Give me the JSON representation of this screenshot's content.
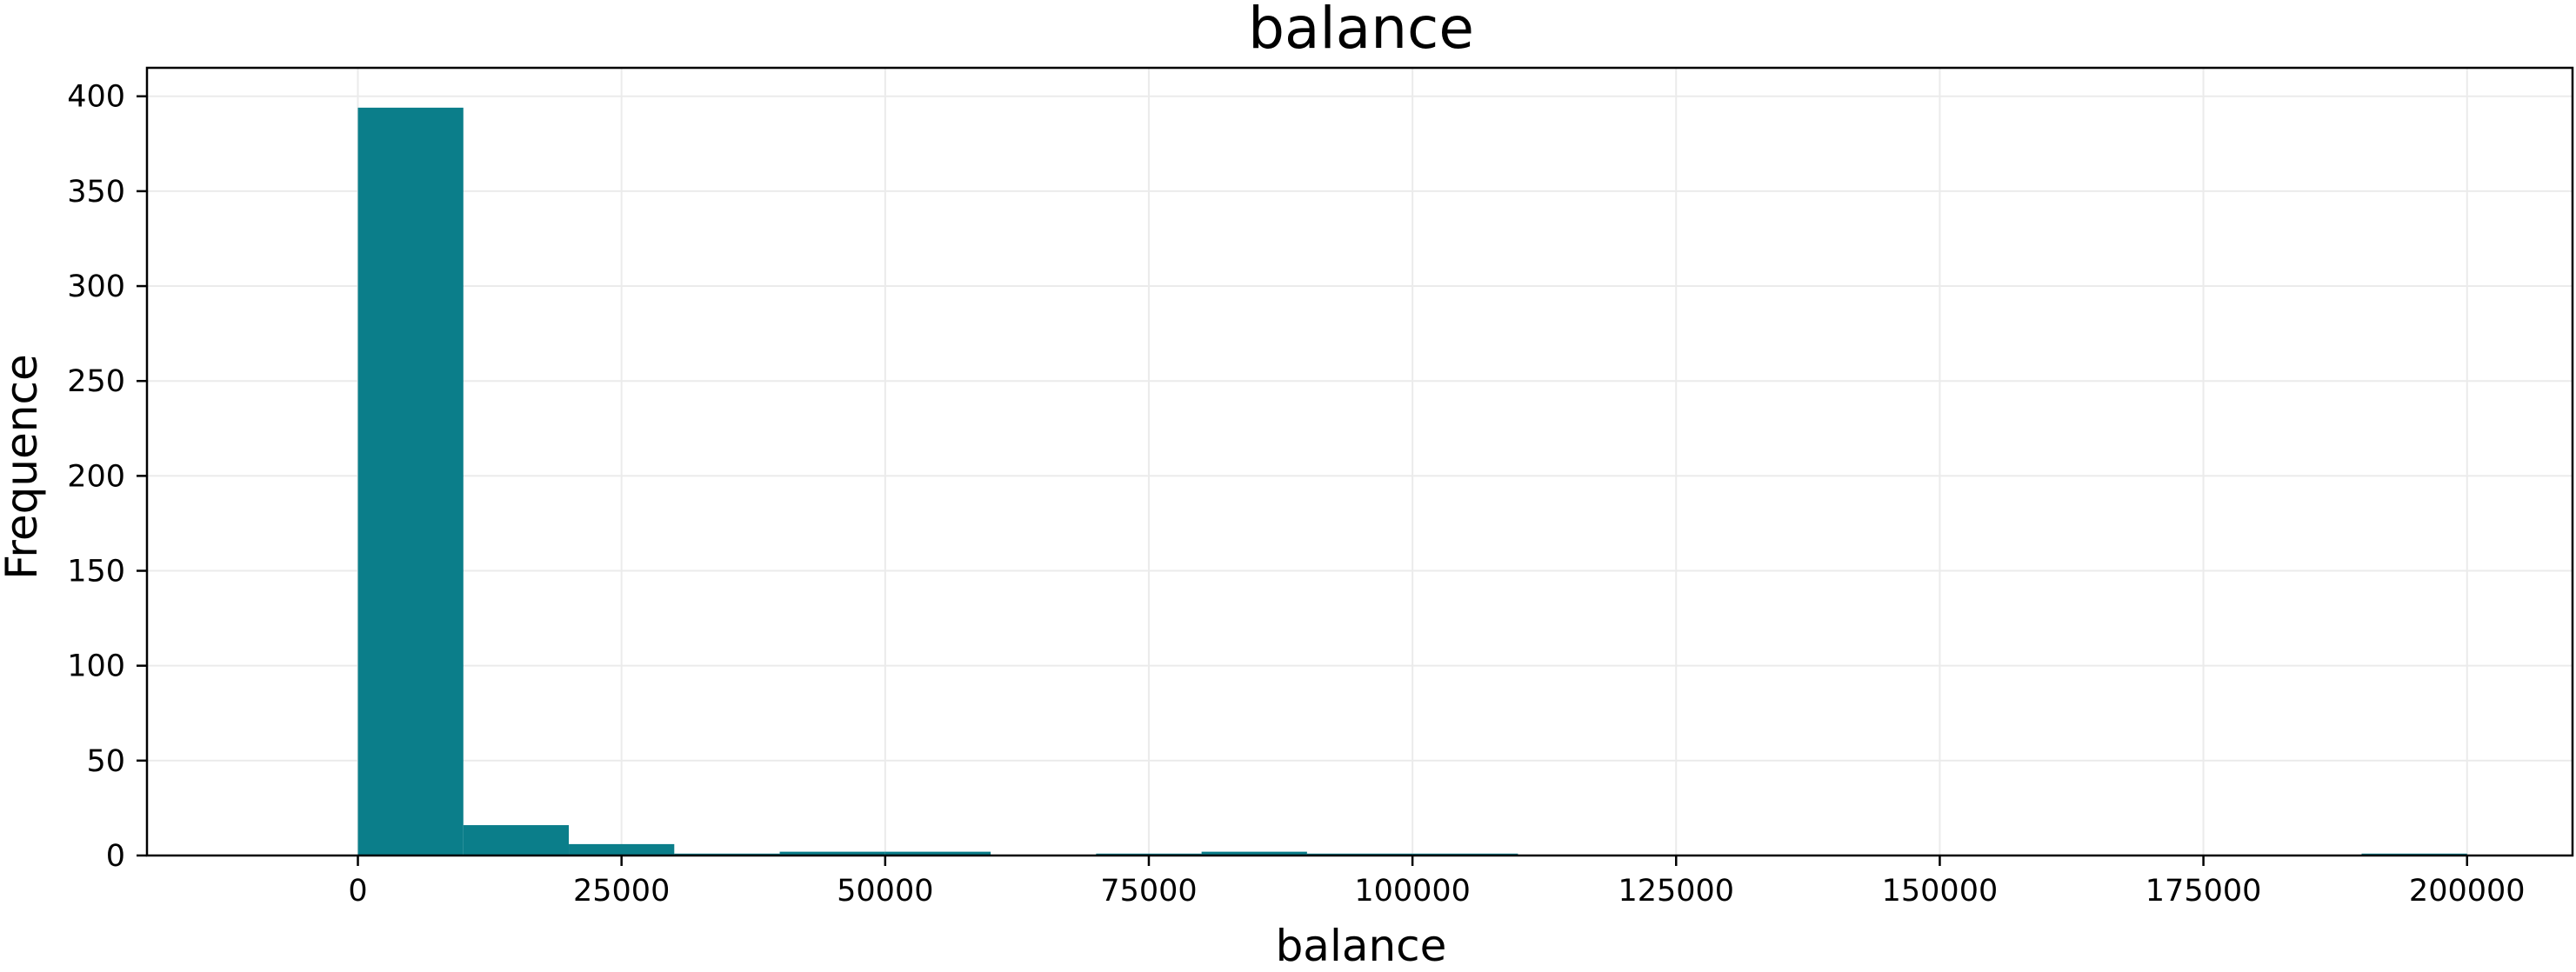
{
  "chart_data": {
    "type": "bar",
    "title": "balance",
    "xlabel": "balance",
    "ylabel": "Frequence",
    "xlim": [
      -20000,
      210000
    ],
    "ylim": [
      0,
      415
    ],
    "x_ticks": [
      0,
      25000,
      50000,
      75000,
      100000,
      125000,
      150000,
      175000,
      200000
    ],
    "y_ticks": [
      0,
      50,
      100,
      150,
      200,
      250,
      300,
      350,
      400
    ],
    "grid": true,
    "bar_color": "#0b7e8a",
    "bins": [
      {
        "start": 0,
        "end": 10000,
        "count": 394
      },
      {
        "start": 10000,
        "end": 20000,
        "count": 16
      },
      {
        "start": 20000,
        "end": 30000,
        "count": 6
      },
      {
        "start": 30000,
        "end": 40000,
        "count": 1
      },
      {
        "start": 40000,
        "end": 50000,
        "count": 2
      },
      {
        "start": 50000,
        "end": 60000,
        "count": 2
      },
      {
        "start": 60000,
        "end": 70000,
        "count": 0
      },
      {
        "start": 70000,
        "end": 80000,
        "count": 1
      },
      {
        "start": 80000,
        "end": 90000,
        "count": 2
      },
      {
        "start": 90000,
        "end": 100000,
        "count": 1
      },
      {
        "start": 100000,
        "end": 110000,
        "count": 1
      },
      {
        "start": 110000,
        "end": 120000,
        "count": 0
      },
      {
        "start": 120000,
        "end": 130000,
        "count": 0
      },
      {
        "start": 130000,
        "end": 140000,
        "count": 0
      },
      {
        "start": 140000,
        "end": 150000,
        "count": 0
      },
      {
        "start": 150000,
        "end": 160000,
        "count": 0
      },
      {
        "start": 160000,
        "end": 170000,
        "count": 0
      },
      {
        "start": 170000,
        "end": 180000,
        "count": 0
      },
      {
        "start": 180000,
        "end": 190000,
        "count": 0
      },
      {
        "start": 190000,
        "end": 200000,
        "count": 1
      }
    ]
  }
}
